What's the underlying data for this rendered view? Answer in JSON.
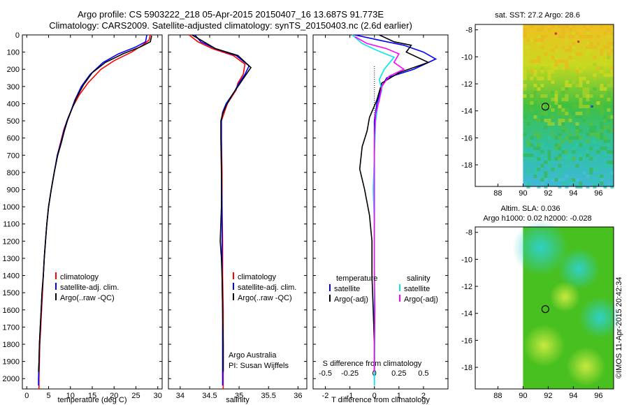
{
  "header": {
    "title_line1": "Argo profile: CS 5903222_218 05-Apr-2015 20150407_16 13.687S 91.773E",
    "title_line2": "Climatology: CARS2009. Satellite-adjusted climatology: synTS_20150403.nc (2.6d earlier)"
  },
  "stamp": "©IMOS 11-Apr-2015 20:42:34",
  "colors": {
    "climatology": "#ff0000",
    "satellite": "#0000ff",
    "argo": "#000000",
    "cyan": "#00e5ee",
    "magenta": "#ff00ff"
  },
  "chart_data": [
    {
      "type": "line",
      "panel": "temperature",
      "xlabel": "temperature (deg C)",
      "xlim": [
        -1,
        31
      ],
      "ylim": [
        2060,
        0
      ],
      "xticks": [
        0,
        5,
        10,
        15,
        20,
        25,
        30
      ],
      "yticks": [
        0,
        100,
        200,
        300,
        400,
        500,
        600,
        700,
        800,
        900,
        1000,
        1100,
        1200,
        1300,
        1400,
        1500,
        1600,
        1700,
        1800,
        1900,
        2000
      ],
      "legend": [
        "climatology",
        "satellite-adj. clim.",
        "Argo(..raw -QC)"
      ],
      "series": [
        {
          "name": "climatology",
          "color": "#ff0000",
          "points": [
            [
              28.3,
              0
            ],
            [
              28,
              30
            ],
            [
              26.5,
              60
            ],
            [
              24,
              100
            ],
            [
              20,
              150
            ],
            [
              17,
              200
            ],
            [
              14,
              280
            ],
            [
              12,
              350
            ],
            [
              10.5,
              420
            ],
            [
              9.5,
              480
            ],
            [
              8.5,
              550
            ],
            [
              7.8,
              620
            ],
            [
              7,
              700
            ],
            [
              6.3,
              800
            ],
            [
              5.6,
              900
            ],
            [
              5,
              1000
            ],
            [
              4.6,
              1100
            ],
            [
              4.3,
              1200
            ],
            [
              4,
              1300
            ],
            [
              3.8,
              1400
            ],
            [
              3.6,
              1500
            ],
            [
              3.4,
              1600
            ],
            [
              3.2,
              1700
            ],
            [
              3,
              1800
            ],
            [
              2.9,
              1900
            ],
            [
              2.8,
              2000
            ],
            [
              2.8,
              2060
            ]
          ]
        },
        {
          "name": "satellite-adj. clim.",
          "color": "#0000ff",
          "points": [
            [
              27.5,
              0
            ],
            [
              27.2,
              40
            ],
            [
              25,
              70
            ],
            [
              21,
              110
            ],
            [
              17.5,
              160
            ],
            [
              14.5,
              230
            ],
            [
              12.5,
              300
            ],
            [
              11,
              380
            ],
            [
              10,
              450
            ],
            [
              9.2,
              500
            ],
            [
              8.5,
              560
            ],
            [
              7.8,
              630
            ],
            [
              7,
              700
            ],
            [
              6.3,
              800
            ],
            [
              5.6,
              900
            ],
            [
              5,
              1000
            ],
            [
              4.6,
              1100
            ],
            [
              4.3,
              1200
            ],
            [
              4,
              1300
            ],
            [
              3.8,
              1400
            ],
            [
              3.5,
              1500
            ],
            [
              3.3,
              1600
            ],
            [
              3.1,
              1700
            ],
            [
              2.9,
              1800
            ],
            [
              2.8,
              1900
            ],
            [
              2.7,
              2000
            ],
            [
              2.7,
              2040
            ]
          ]
        },
        {
          "name": "Argo(..raw -QC)",
          "color": "#000000",
          "points": [
            [
              28.6,
              5
            ],
            [
              28.3,
              40
            ],
            [
              26,
              70
            ],
            [
              22,
              110
            ],
            [
              18,
              160
            ],
            [
              15,
              220
            ],
            [
              13,
              290
            ],
            [
              11.3,
              370
            ],
            [
              10.2,
              440
            ],
            [
              9.3,
              500
            ],
            [
              8.6,
              560
            ],
            [
              7.9,
              630
            ],
            [
              7.1,
              700
            ],
            [
              6.3,
              800
            ],
            [
              5.6,
              900
            ],
            [
              5,
              1000
            ],
            [
              4.6,
              1100
            ],
            [
              4.3,
              1200
            ],
            [
              4,
              1300
            ],
            [
              3.8,
              1400
            ],
            [
              3.5,
              1500
            ],
            [
              3.3,
              1600
            ],
            [
              3.1,
              1700
            ],
            [
              2.9,
              1800
            ],
            [
              2.8,
              1900
            ],
            [
              2.7,
              1960
            ]
          ]
        }
      ]
    },
    {
      "type": "line",
      "panel": "salinity",
      "xlabel": "salinity",
      "xlim": [
        33.8,
        36.15
      ],
      "ylim": [
        2060,
        0
      ],
      "xticks": [
        34,
        34.5,
        35,
        35.5,
        36
      ],
      "legend": [
        "climatology",
        "satellite-adj. clim.",
        "Argo(..raw -QC)"
      ],
      "annotation": [
        "Argo Australia",
        "PI: Susan Wijffels"
      ],
      "series": [
        {
          "name": "climatology",
          "color": "#ff0000",
          "points": [
            [
              34.15,
              0
            ],
            [
              34.3,
              40
            ],
            [
              34.55,
              80
            ],
            [
              34.9,
              120
            ],
            [
              35.1,
              170
            ],
            [
              35.07,
              230
            ],
            [
              34.98,
              280
            ],
            [
              34.95,
              320
            ],
            [
              34.8,
              400
            ],
            [
              34.75,
              450
            ],
            [
              34.7,
              500
            ],
            [
              34.7,
              600
            ],
            [
              34.71,
              800
            ],
            [
              34.71,
              1000
            ],
            [
              34.72,
              1200
            ],
            [
              34.72,
              1400
            ],
            [
              34.73,
              1600
            ],
            [
              34.73,
              1800
            ],
            [
              34.73,
              2060
            ]
          ]
        },
        {
          "name": "satellite-adj. clim.",
          "color": "#0000ff",
          "points": [
            [
              34.25,
              0
            ],
            [
              34.35,
              40
            ],
            [
              34.6,
              80
            ],
            [
              34.95,
              120
            ],
            [
              35.17,
              180
            ],
            [
              35.1,
              230
            ],
            [
              35.0,
              280
            ],
            [
              34.92,
              330
            ],
            [
              34.78,
              400
            ],
            [
              34.72,
              450
            ],
            [
              34.7,
              500
            ],
            [
              34.7,
              600
            ],
            [
              34.7,
              800
            ],
            [
              34.71,
              1000
            ],
            [
              34.71,
              1200
            ],
            [
              34.71,
              1400
            ],
            [
              34.72,
              1600
            ],
            [
              34.72,
              1800
            ],
            [
              34.72,
              2040
            ]
          ]
        },
        {
          "name": "Argo(..raw -QC)",
          "color": "#000000",
          "points": [
            [
              34.2,
              0
            ],
            [
              34.4,
              40
            ],
            [
              34.6,
              80
            ],
            [
              34.98,
              120
            ],
            [
              35.2,
              190
            ],
            [
              35.1,
              240
            ],
            [
              35.0,
              290
            ],
            [
              34.9,
              340
            ],
            [
              34.78,
              410
            ],
            [
              34.72,
              460
            ],
            [
              34.69,
              500
            ],
            [
              34.69,
              600
            ],
            [
              34.7,
              800
            ],
            [
              34.7,
              1000
            ],
            [
              34.68,
              1200
            ],
            [
              34.7,
              1300
            ],
            [
              34.71,
              1400
            ],
            [
              34.72,
              1600
            ],
            [
              34.73,
              1800
            ],
            [
              34.73,
              1960
            ]
          ]
        }
      ]
    },
    {
      "type": "line",
      "panel": "differences",
      "xlabel": "T difference from climatology",
      "xlabel_top": "S difference from climatology",
      "xlim": [
        -2.5,
        3
      ],
      "ylim": [
        2060,
        0
      ],
      "xticks": [
        -2,
        -1,
        0,
        1,
        2
      ],
      "s_ticks": [
        {
          "v": -0.5,
          "label": "-0.5"
        },
        {
          "v": -0.25,
          "label": "-0.25"
        },
        {
          "v": 0,
          "label": "0"
        },
        {
          "v": 0.25,
          "label": "0.25"
        },
        {
          "v": 0.5,
          "label": "0.5"
        }
      ],
      "s_scale": 4,
      "legend_left_title": "temperature",
      "legend_right_title": "salinity",
      "legend": [
        "satellite",
        "Argo(-adj)",
        "satellite",
        "Argo(-adj)"
      ],
      "series": [
        {
          "name": "satellite",
          "color": "#0000ff",
          "points": [
            [
              -0.8,
              0
            ],
            [
              0.5,
              40
            ],
            [
              1.2,
              60
            ],
            [
              2,
              100
            ],
            [
              2.5,
              140
            ],
            [
              1.6,
              200
            ],
            [
              0.5,
              250
            ],
            [
              0.3,
              300
            ],
            [
              0.1,
              400
            ],
            [
              0,
              500
            ],
            [
              0,
              700
            ],
            [
              0,
              1000
            ],
            [
              0,
              1200
            ],
            [
              0,
              1500
            ],
            [
              0,
              1700
            ],
            [
              0,
              2040
            ]
          ]
        },
        {
          "name": "Argo(-adj)",
          "color": "#000000",
          "points": [
            [
              0.2,
              0
            ],
            [
              0.8,
              40
            ],
            [
              1.5,
              60
            ],
            [
              1.3,
              100
            ],
            [
              2.2,
              160
            ],
            [
              1,
              220
            ],
            [
              0.3,
              280
            ],
            [
              0.1,
              380
            ],
            [
              -0.2,
              480
            ],
            [
              -0.3,
              560
            ],
            [
              -0.5,
              650
            ],
            [
              -0.6,
              780
            ],
            [
              -0.4,
              900
            ],
            [
              -0.2,
              1050
            ],
            [
              -0.1,
              1200
            ],
            [
              -0.1,
              1400
            ],
            [
              -0.05,
              1600
            ],
            [
              0,
              1800
            ],
            [
              0,
              1960
            ]
          ]
        },
        {
          "name": "satellite",
          "color": "#00e5ee",
          "points": [
            [
              -0.9,
              0
            ],
            [
              -0.5,
              50
            ],
            [
              0.1,
              90
            ],
            [
              0.8,
              130
            ],
            [
              0.4,
              200
            ],
            [
              0.2,
              260
            ],
            [
              0.3,
              320
            ],
            [
              0.15,
              400
            ],
            [
              0.05,
              500
            ],
            [
              0,
              700
            ],
            [
              -0.05,
              900
            ],
            [
              0,
              1100
            ],
            [
              0,
              1300
            ],
            [
              0,
              1500
            ],
            [
              0.02,
              1700
            ],
            [
              0,
              2040
            ]
          ]
        },
        {
          "name": "Argo(-adj)",
          "color": "#ff00ff",
          "points": [
            [
              -0.8,
              10
            ],
            [
              -0.3,
              50
            ],
            [
              0.5,
              80
            ],
            [
              1,
              110
            ],
            [
              0.8,
              160
            ],
            [
              1.2,
              200
            ],
            [
              0.6,
              240
            ],
            [
              0.3,
              300
            ],
            [
              0.2,
              380
            ],
            [
              0.05,
              460
            ],
            [
              0,
              600
            ],
            [
              0,
              800
            ],
            [
              0,
              1000
            ],
            [
              0,
              1200
            ],
            [
              0,
              1400
            ],
            [
              0.02,
              1600
            ],
            [
              0,
              1800
            ],
            [
              0,
              1960
            ]
          ]
        }
      ]
    },
    {
      "type": "heatmap",
      "panel": "sst_map",
      "title": "sat. SST: 27.2  Argo: 28.6",
      "xlim": [
        86.2,
        97.2
      ],
      "ylim": [
        -19.6,
        -7.6
      ],
      "xticks": [
        88,
        90,
        92,
        94,
        96
      ],
      "yticks": [
        -8,
        -10,
        -12,
        -14,
        -16,
        -18
      ],
      "marker": [
        91.773,
        -13.687
      ]
    },
    {
      "type": "heatmap",
      "panel": "sla_map",
      "title_line1": "Altim. SLA: 0.036",
      "title_line2": "Argo h1000: 0.02 h2000: -0.028",
      "xlim": [
        86.2,
        97.2
      ],
      "ylim": [
        -19.6,
        -7.6
      ],
      "xticks": [
        88,
        90,
        92,
        94,
        96
      ],
      "yticks": [
        -8,
        -10,
        -12,
        -14,
        -16,
        -18
      ],
      "marker": [
        91.773,
        -13.687
      ]
    }
  ]
}
